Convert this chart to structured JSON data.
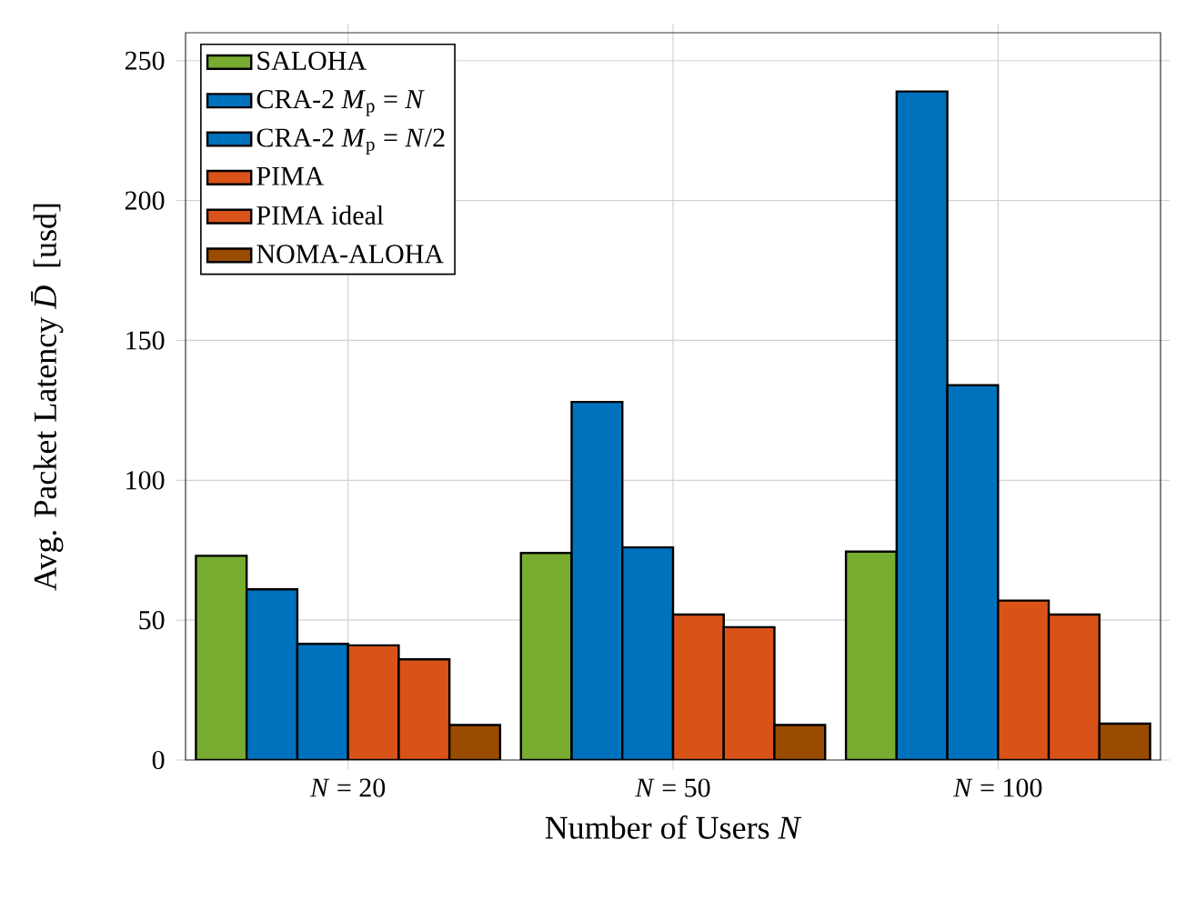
{
  "chart_data": {
    "type": "bar",
    "xlabel": "Number of Users *N*",
    "ylabel": "Avg. Packet Latency *D̄* [usd]",
    "categories": [
      "*N* = 20",
      "*N* = 50",
      "*N* = 100"
    ],
    "series": [
      {
        "name": "SALOHA",
        "color": "#77ac30",
        "values": [
          73,
          74,
          74.5
        ]
      },
      {
        "name": "CRA-2 *M*$_{p}$ = *N*",
        "color": "#0072bd",
        "values": [
          61,
          128,
          239
        ]
      },
      {
        "name": "CRA-2 *M*$_{p}$ = *N*/2",
        "color": "#0072bd",
        "values": [
          41.5,
          76,
          134
        ]
      },
      {
        "name": "PIMA",
        "color": "#d95319",
        "values": [
          41,
          52,
          57
        ]
      },
      {
        "name": "PIMA ideal",
        "color": "#d95319",
        "values": [
          36,
          47.5,
          52
        ]
      },
      {
        "name": "NOMA-ALOHA",
        "color": "#994c00",
        "values": [
          12.5,
          12.5,
          13
        ]
      }
    ],
    "ylim": [
      0,
      260
    ],
    "yticks": [
      0,
      50,
      100,
      150,
      200,
      250
    ],
    "grid": true,
    "legend": "top left"
  }
}
